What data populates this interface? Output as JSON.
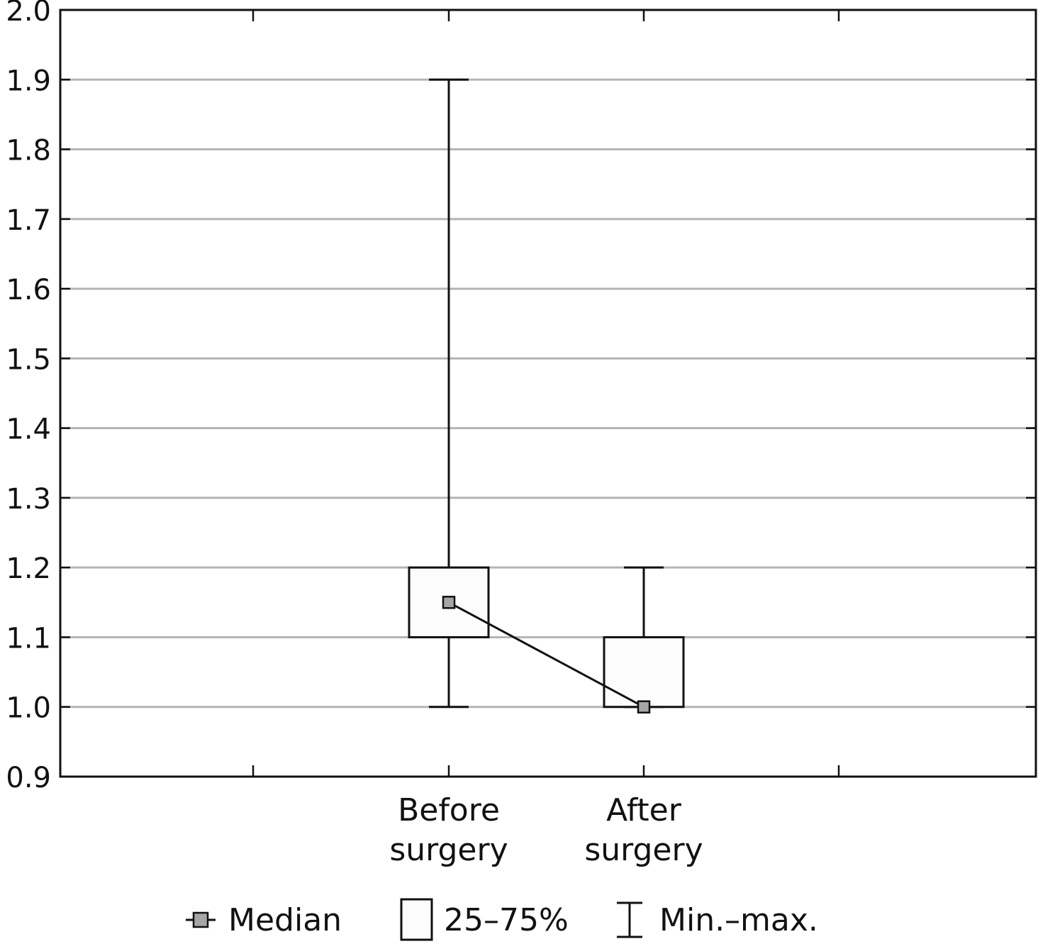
{
  "chart_data": {
    "type": "boxplot",
    "categories": [
      "Before surgery",
      "After surgery"
    ],
    "category_lines": [
      [
        "Before",
        "surgery"
      ],
      [
        "After",
        "surgery"
      ]
    ],
    "boxes": [
      {
        "category": "Before surgery",
        "min": 1.0,
        "q1": 1.1,
        "median": 1.15,
        "q3": 1.2,
        "max": 1.9
      },
      {
        "category": "After surgery",
        "min": 1.0,
        "q1": 1.0,
        "median": 1.0,
        "q3": 1.1,
        "max": 1.2
      }
    ],
    "median_line_connected": true,
    "ylim": [
      0.9,
      2.0
    ],
    "yticks": [
      "0.9",
      "1.0",
      "1.1",
      "1.2",
      "1.3",
      "1.4",
      "1.5",
      "1.6",
      "1.7",
      "1.8",
      "1.9",
      "2.0"
    ],
    "grid": true,
    "legend": {
      "placement": "bottom",
      "items": [
        {
          "symbol": "median",
          "label": "Median"
        },
        {
          "symbol": "box",
          "label": "25–75%"
        },
        {
          "symbol": "whisker",
          "label": "Min.–max."
        }
      ]
    },
    "colors": {
      "median_marker": "#a6a6a6",
      "grid": "#b5b5b5",
      "box_fill": "#fcfcfc",
      "stroke": "#111111"
    }
  }
}
